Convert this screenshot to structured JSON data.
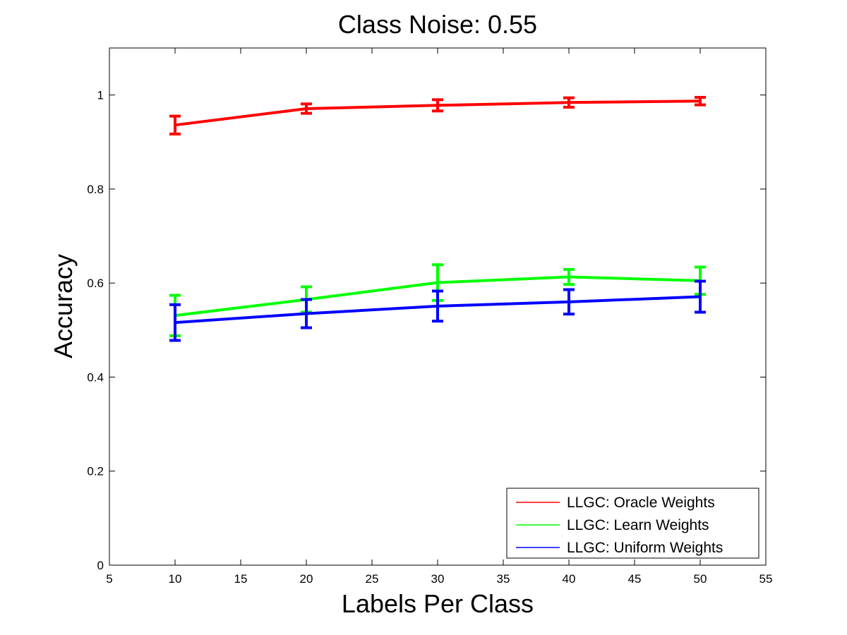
{
  "chart_data": {
    "type": "line",
    "title": "Class Noise: 0.55",
    "xlabel": "Labels Per Class",
    "ylabel": "Accuracy",
    "xlim": [
      5,
      55
    ],
    "ylim": [
      0,
      1.1
    ],
    "xticks": [
      5,
      10,
      15,
      20,
      25,
      30,
      35,
      40,
      45,
      50,
      55
    ],
    "yticks": [
      0,
      0.2,
      0.4,
      0.6,
      0.8,
      1
    ],
    "ytick_labels": [
      "0",
      "0.2",
      "0.4",
      "0.6",
      "0.8",
      "1"
    ],
    "x": [
      10,
      20,
      30,
      40,
      50
    ],
    "grid": false,
    "legend_position": "bottom-right",
    "series": [
      {
        "name": "LLGC: Oracle Weights",
        "color": "#ff0000",
        "values": [
          0.936,
          0.971,
          0.978,
          0.984,
          0.987
        ],
        "error": [
          0.019,
          0.01,
          0.012,
          0.01,
          0.008
        ]
      },
      {
        "name": "LLGC: Learn Weights",
        "color": "#00ff00",
        "values": [
          0.531,
          0.565,
          0.601,
          0.613,
          0.605
        ],
        "error": [
          0.043,
          0.027,
          0.038,
          0.016,
          0.029
        ]
      },
      {
        "name": "LLGC: Uniform Weights",
        "color": "#0000ff",
        "values": [
          0.516,
          0.535,
          0.551,
          0.56,
          0.571
        ],
        "error": [
          0.038,
          0.03,
          0.032,
          0.026,
          0.033
        ]
      }
    ]
  }
}
